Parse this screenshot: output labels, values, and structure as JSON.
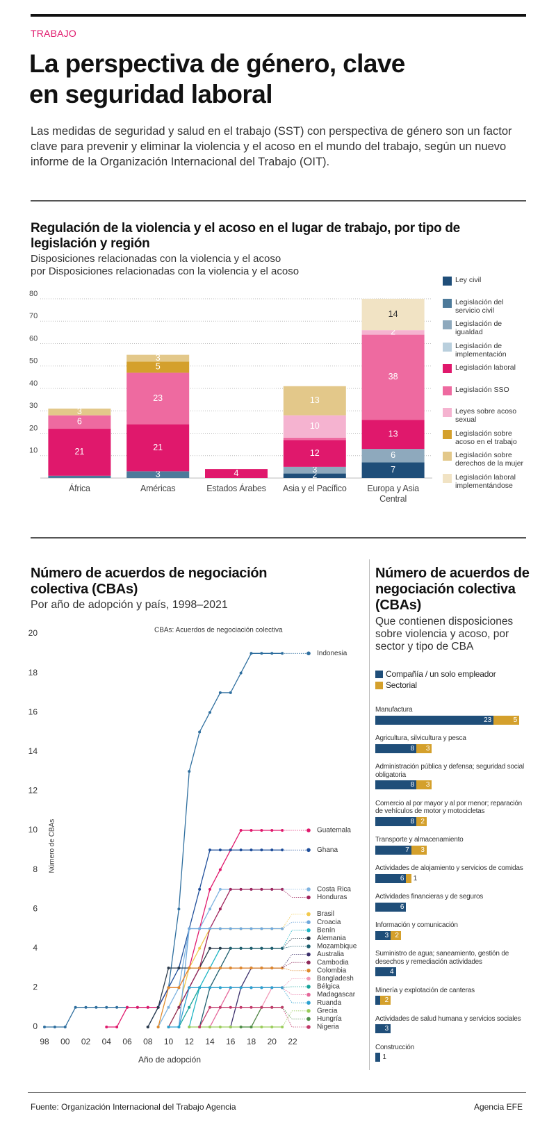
{
  "header": {
    "section": "TRABAJO",
    "title": "La perspectiva de género, clave en seguridad laboral",
    "description": "Las medidas de seguridad y salud en el trabajo (SST) con perspectiva de género son un factor clave para prevenir y eliminar la violencia y el acoso en el mundo del trabajo, según un nuevo informe de la Organización Internacional del Trabajo (OIT)."
  },
  "chart_data": [
    {
      "type": "bar",
      "stacked": true,
      "grid": true,
      "title": "Regulación de la violencia y el acoso en el lugar de trabajo, por tipo de legislación y región",
      "subtitle": [
        "Disposiciones relacionadas con la violencia y el acoso",
        "por Disposiciones relacionadas con la violencia y el acoso"
      ],
      "categories": [
        "África",
        "Américas",
        "Estados Árabes",
        "Asia y el Pacífico",
        "Europa y Asia Central"
      ],
      "ylim": [
        0,
        80
      ],
      "yticks": [
        10,
        20,
        30,
        40,
        50,
        60,
        70,
        80
      ],
      "series": [
        {
          "name": "Ley civil",
          "color": "#1f4e79",
          "values": [
            null,
            null,
            null,
            2,
            7
          ]
        },
        {
          "name": "Legislación del servicio civil",
          "color": "#4d7a9a",
          "values": [
            1,
            3,
            null,
            null,
            null
          ]
        },
        {
          "name": "Legislación de igualdad",
          "color": "#8ea9bd",
          "values": [
            null,
            null,
            null,
            3,
            6
          ]
        },
        {
          "name": "Legislación de implementación",
          "color": "#b9cfdd",
          "values": [
            null,
            null,
            null,
            null,
            null
          ]
        },
        {
          "name": "Legislación laboral",
          "color": "#e0186c",
          "values": [
            21,
            21,
            4,
            12,
            13
          ]
        },
        {
          "name": "Legislación SSO",
          "color": "#ee6aa0",
          "values": [
            6,
            23,
            null,
            1,
            38
          ]
        },
        {
          "name": "Leyes sobre acoso sexual",
          "color": "#f5b3d0",
          "values": [
            null,
            null,
            null,
            10,
            2
          ]
        },
        {
          "name": "Legislación sobre acoso en el trabajo",
          "color": "#d4a02c",
          "values": [
            null,
            5,
            null,
            null,
            null
          ]
        },
        {
          "name": "Legislación sobre derechos de la mujer",
          "color": "#e3c88a",
          "values": [
            3,
            3,
            null,
            13,
            null
          ]
        },
        {
          "name": "Legislación laboral implementándose",
          "color": "#f1e3c4",
          "values": [
            null,
            null,
            null,
            null,
            14
          ]
        }
      ]
    },
    {
      "type": "line",
      "title": "Número de acuerdos de negociación colectiva (CBAs)",
      "subtitle": "Por año de adopción y país, 1998–2021",
      "annotation": "CBAs: Acuerdos de negociación colectiva",
      "x_label": "Año de adopción",
      "y_label": "Número de CBAs",
      "x": [
        1998,
        1999,
        2000,
        2001,
        2002,
        2003,
        2004,
        2005,
        2006,
        2007,
        2008,
        2009,
        2010,
        2011,
        2012,
        2013,
        2014,
        2015,
        2016,
        2017,
        2018,
        2019,
        2020,
        2021
      ],
      "xlim": [
        1998,
        2022
      ],
      "xticks": [
        {
          "value": 1998,
          "label": "98"
        },
        {
          "value": 2000,
          "label": "00"
        },
        {
          "value": 2002,
          "label": "02"
        },
        {
          "value": 2004,
          "label": "04"
        },
        {
          "value": 2006,
          "label": "06"
        },
        {
          "value": 2008,
          "label": "08"
        },
        {
          "value": 2010,
          "label": "10"
        },
        {
          "value": 2012,
          "label": "12"
        },
        {
          "value": 2014,
          "label": "14"
        },
        {
          "value": 2016,
          "label": "16"
        },
        {
          "value": 2018,
          "label": "18"
        },
        {
          "value": 2020,
          "label": "20"
        },
        {
          "value": 2022,
          "label": "22"
        }
      ],
      "ylim": [
        0,
        20
      ],
      "yticks": [
        0,
        2,
        4,
        6,
        8,
        10,
        12,
        14,
        16,
        18,
        20
      ],
      "series": [
        {
          "name": "Indonesia",
          "color": "#2f6f9f",
          "values": [
            0,
            0,
            0,
            1,
            1,
            1,
            1,
            1,
            1,
            1,
            1,
            1,
            2,
            6,
            13,
            15,
            16,
            17,
            17,
            18,
            19,
            19,
            19,
            19
          ]
        },
        {
          "name": "Guatemala",
          "color": "#e0186c",
          "values": [
            null,
            null,
            null,
            null,
            null,
            null,
            0,
            0,
            1,
            1,
            1,
            1,
            2,
            2,
            3,
            5,
            7,
            8,
            9,
            10,
            10,
            10,
            10,
            10
          ]
        },
        {
          "name": "Ghana",
          "color": "#1f4e9a",
          "values": [
            null,
            null,
            null,
            null,
            null,
            null,
            null,
            null,
            null,
            null,
            0,
            1,
            2,
            3,
            5,
            7,
            9,
            9,
            9,
            9,
            9,
            9,
            9,
            9
          ]
        },
        {
          "name": "Costa Rica",
          "color": "#7fb3e0",
          "values": [
            null,
            null,
            null,
            null,
            null,
            null,
            null,
            null,
            null,
            null,
            null,
            0,
            1,
            2,
            5,
            5,
            6,
            7,
            7,
            7,
            7,
            7,
            7,
            7
          ]
        },
        {
          "name": "Honduras",
          "color": "#a0245c",
          "values": [
            null,
            null,
            null,
            null,
            null,
            null,
            null,
            null,
            null,
            null,
            null,
            null,
            null,
            1,
            2,
            3,
            5,
            6,
            7,
            7,
            7,
            7,
            7,
            7
          ]
        },
        {
          "name": "Brasil",
          "color": "#f2c94c",
          "values": [
            null,
            null,
            null,
            null,
            null,
            null,
            null,
            null,
            null,
            null,
            null,
            null,
            0,
            1,
            3,
            4,
            5,
            5,
            5,
            5,
            5,
            5,
            5,
            5
          ]
        },
        {
          "name": "Croacia",
          "color": "#6fa8dc",
          "values": [
            null,
            null,
            null,
            null,
            null,
            null,
            null,
            null,
            null,
            null,
            null,
            null,
            null,
            0,
            5,
            5,
            5,
            5,
            5,
            5,
            5,
            5,
            5,
            5
          ]
        },
        {
          "name": "Benín",
          "color": "#1fb5c4",
          "values": [
            null,
            null,
            null,
            null,
            null,
            null,
            null,
            null,
            null,
            null,
            null,
            null,
            null,
            null,
            0,
            2,
            3,
            4,
            4,
            4,
            4,
            4,
            4,
            4
          ]
        },
        {
          "name": "Alemania",
          "color": "#2b3a4a",
          "values": [
            null,
            null,
            null,
            null,
            null,
            null,
            null,
            null,
            null,
            null,
            0,
            1,
            3,
            3,
            3,
            3,
            4,
            4,
            4,
            4,
            4,
            4,
            4,
            4
          ]
        },
        {
          "name": "Mozambique",
          "color": "#1f5f6f",
          "values": [
            null,
            null,
            null,
            null,
            null,
            null,
            null,
            null,
            null,
            null,
            null,
            null,
            null,
            null,
            null,
            0,
            2,
            3,
            4,
            4,
            4,
            4,
            4,
            4
          ]
        },
        {
          "name": "Australia",
          "color": "#3b2f6b",
          "values": [
            null,
            null,
            null,
            null,
            null,
            null,
            null,
            null,
            null,
            null,
            null,
            null,
            null,
            null,
            null,
            null,
            null,
            null,
            0,
            2,
            3,
            3,
            3,
            3
          ]
        },
        {
          "name": "Cambodia",
          "color": "#8e2a5a",
          "values": [
            null,
            null,
            null,
            null,
            null,
            null,
            null,
            null,
            null,
            null,
            null,
            null,
            0,
            1,
            2,
            3,
            3,
            3,
            3,
            3,
            3,
            3,
            3,
            3
          ]
        },
        {
          "name": "Colombia",
          "color": "#e08a2c",
          "values": [
            null,
            null,
            null,
            null,
            null,
            null,
            null,
            null,
            null,
            null,
            null,
            0,
            2,
            2,
            3,
            3,
            3,
            3,
            3,
            3,
            3,
            3,
            3,
            3
          ]
        },
        {
          "name": "Bangladesh",
          "color": "#f29ab8",
          "values": [
            null,
            null,
            null,
            null,
            null,
            null,
            null,
            null,
            null,
            null,
            null,
            null,
            null,
            null,
            null,
            null,
            null,
            null,
            null,
            null,
            0,
            1,
            2,
            2
          ]
        },
        {
          "name": "Bélgica",
          "color": "#18a39a",
          "values": [
            null,
            null,
            null,
            null,
            null,
            null,
            null,
            null,
            null,
            null,
            null,
            null,
            null,
            0,
            1,
            2,
            2,
            2,
            2,
            2,
            2,
            2,
            2,
            2
          ]
        },
        {
          "name": "Madagascar",
          "color": "#e5679a",
          "values": [
            null,
            null,
            null,
            null,
            null,
            null,
            null,
            null,
            null,
            null,
            null,
            null,
            null,
            null,
            null,
            null,
            0,
            1,
            2,
            2,
            2,
            2,
            2,
            2
          ]
        },
        {
          "name": "Ruanda",
          "color": "#2aa0d0",
          "values": [
            null,
            null,
            null,
            null,
            null,
            null,
            null,
            null,
            null,
            null,
            null,
            null,
            0,
            0,
            2,
            2,
            2,
            2,
            2,
            2,
            2,
            2,
            2,
            2
          ]
        },
        {
          "name": "Grecia",
          "color": "#9acd5a",
          "values": [
            null,
            null,
            null,
            null,
            null,
            null,
            null,
            null,
            null,
            null,
            null,
            null,
            null,
            null,
            0,
            0,
            0,
            0,
            0,
            0,
            0,
            0,
            0,
            0
          ]
        },
        {
          "name": "Hungría",
          "color": "#4f8f4a",
          "values": [
            null,
            null,
            null,
            null,
            null,
            null,
            null,
            null,
            null,
            null,
            null,
            null,
            null,
            null,
            null,
            null,
            null,
            null,
            null,
            0,
            0,
            1,
            1,
            1
          ]
        },
        {
          "name": "Nigeria",
          "color": "#c23a6a",
          "values": [
            null,
            null,
            null,
            null,
            null,
            null,
            null,
            null,
            null,
            null,
            null,
            null,
            null,
            null,
            null,
            0,
            1,
            1,
            1,
            1,
            1,
            1,
            1,
            1
          ]
        }
      ]
    },
    {
      "type": "hbar",
      "stacked": true,
      "title": "Número de acuerdos de negociación colectiva (CBAs)",
      "subtitle": "Que contienen disposiciones sobre violencia y acoso, por sector y tipo de CBA",
      "categories": [
        "Manufactura",
        "Agricultura, silvicultura y pesca",
        "Administración pública y defensa; seguridad social obligatoria",
        "Comercio al por mayor y al por menor; reparación de vehículos de motor y motocicletas",
        "Transporte y almacenamiento",
        "Actividades de alojamiento y servicios de comidas",
        "Actividades financieras y de seguros",
        "Información y comunicación",
        "Suministro de agua; saneamiento, gestión de desechos y remediación actividades",
        "Minería y explotación de canteras",
        "Actividades de salud humana y servicios sociales",
        "Construcción"
      ],
      "series": [
        {
          "name": "Compañía / un solo empleador",
          "color": "#1f4e79",
          "values": [
            23,
            8,
            8,
            8,
            7,
            6,
            6,
            3,
            4,
            1,
            3,
            1
          ]
        },
        {
          "name": "Sectorial",
          "color": "#d4a02c",
          "values": [
            5,
            3,
            3,
            2,
            3,
            1,
            null,
            2,
            null,
            2,
            null,
            null
          ]
        }
      ]
    }
  ],
  "footer": {
    "source": "Fuente: Organización Internacional del Trabajo Agencia",
    "credit": "Agencia EFE"
  }
}
